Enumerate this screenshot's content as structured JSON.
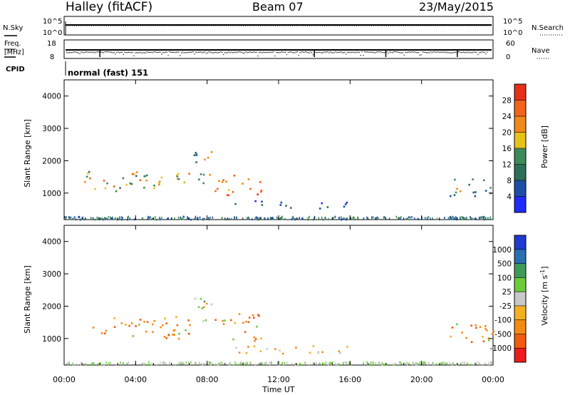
{
  "header": {
    "site": "Halley (fitACF)",
    "beam": "Beam 07",
    "date": "23/May/2015"
  },
  "aux_panels": {
    "nsky_label": "N.Sky",
    "nsearch_label": "N.Search",
    "freq_label_1": "Freq.",
    "freq_label_2": "[MHz]",
    "nave_label": "Nave",
    "cpid_label": "CPID",
    "cpid_value": "normal (fast) 151",
    "noise_ticks_left": [
      "10^5",
      "10^0"
    ],
    "noise_ticks_right": [
      "10^5",
      "10^0"
    ],
    "freq_ticks": [
      "18",
      "8"
    ],
    "nave_ticks": [
      "60",
      "0"
    ]
  },
  "colors": {
    "power_scale": [
      "#1f2bff",
      "#1d4fa6",
      "#2e6f58",
      "#3d8a5a",
      "#e7c21a",
      "#f08a18",
      "#f2641a",
      "#e83018"
    ],
    "velocity_scale": [
      "#ee1c1c",
      "#f25b10",
      "#f58a14",
      "#f4b020",
      "#c8c8c8",
      "#6ccc3a",
      "#3e9a58",
      "#2a6fb0",
      "#1f3ad0"
    ]
  },
  "chart_data": [
    {
      "type": "heatmap",
      "name": "power",
      "ylabel": "Slant Range [km]",
      "xlabel": "Time UT",
      "xlim": [
        "00:00",
        "24:00"
      ],
      "ylim": [
        180,
        4500
      ],
      "x_ticks": [
        "00:00",
        "04:00",
        "08:00",
        "12:00",
        "16:00",
        "20:00",
        "00:00"
      ],
      "y_ticks": [
        1000,
        2000,
        3000,
        4000
      ],
      "colorbar": {
        "label": "Power [dB]",
        "ticks": [
          4,
          8,
          12,
          16,
          20,
          24,
          28
        ]
      },
      "regions": [
        {
          "t0": 1.0,
          "t1": 7.2,
          "r0": 1050,
          "r1": 1700,
          "level": "mixed-high"
        },
        {
          "t0": 7.2,
          "t1": 8.4,
          "r0": 1300,
          "r1": 2300,
          "level": "mixed"
        },
        {
          "t0": 8.4,
          "t1": 11.0,
          "r0": 950,
          "r1": 1600,
          "level": "high"
        },
        {
          "t0": 9.5,
          "t1": 16.0,
          "r0": 550,
          "r1": 800,
          "level": "low"
        },
        {
          "t0": 21.5,
          "t1": 24.0,
          "r0": 900,
          "r1": 1500,
          "level": "mixed"
        }
      ]
    },
    {
      "type": "heatmap",
      "name": "velocity",
      "ylabel": "Slant Range [km]",
      "xlabel": "Time UT",
      "xlim": [
        "00:00",
        "24:00"
      ],
      "ylim": [
        180,
        4500
      ],
      "x_ticks": [
        "00:00",
        "04:00",
        "08:00",
        "12:00",
        "16:00",
        "20:00",
        "00:00"
      ],
      "y_ticks": [
        1000,
        2000,
        3000,
        4000
      ],
      "colorbar": {
        "label": "Velocity [m s^-1]",
        "ticks": [
          "1000",
          "500",
          "100",
          "25",
          "-25",
          "-100",
          "-500",
          "-1000"
        ]
      },
      "regions": [
        {
          "t0": 1.0,
          "t1": 7.2,
          "r0": 1000,
          "r1": 1700,
          "level": "negative"
        },
        {
          "t0": 7.2,
          "t1": 8.4,
          "r0": 1300,
          "r1": 2300,
          "level": "mixed"
        },
        {
          "t0": 8.4,
          "t1": 11.0,
          "r0": 950,
          "r1": 1800,
          "level": "negative"
        },
        {
          "t0": 9.5,
          "t1": 16.0,
          "r0": 550,
          "r1": 800,
          "level": "ground-scatter"
        },
        {
          "t0": 21.5,
          "t1": 24.0,
          "r0": 900,
          "r1": 1500,
          "level": "negative"
        }
      ]
    }
  ]
}
